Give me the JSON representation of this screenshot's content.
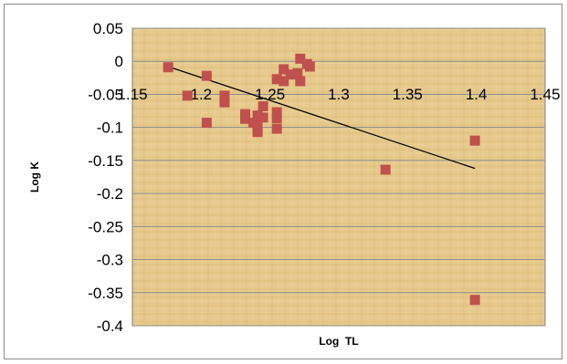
{
  "chart_data": {
    "type": "scatter",
    "xlabel": "Log  TL",
    "ylabel": "Log K",
    "xlim": [
      1.15,
      1.45
    ],
    "ylim": [
      -0.4,
      0.05
    ],
    "x_ticks": [
      "1.15",
      "1.2",
      "1.25",
      "1.3",
      "1.35",
      "1.4",
      "1.45"
    ],
    "y_ticks": [
      "0.05",
      "0",
      "-0.05",
      "-0.1",
      "-0.15",
      "-0.2",
      "-0.25",
      "-0.3",
      "-0.35",
      "-0.4"
    ],
    "grid": "horizontal",
    "legend": "none",
    "colors": {
      "marker": "#c0504d",
      "trendline": "#000000",
      "plot_background": "#e3c68a",
      "gridline": "#8a8a8a"
    },
    "points": [
      {
        "x": 1.176,
        "y": -0.009
      },
      {
        "x": 1.19,
        "y": -0.052
      },
      {
        "x": 1.204,
        "y": -0.022
      },
      {
        "x": 1.204,
        "y": -0.093
      },
      {
        "x": 1.217,
        "y": -0.052
      },
      {
        "x": 1.217,
        "y": -0.062
      },
      {
        "x": 1.232,
        "y": -0.08
      },
      {
        "x": 1.232,
        "y": -0.087
      },
      {
        "x": 1.238,
        "y": -0.093
      },
      {
        "x": 1.241,
        "y": -0.082
      },
      {
        "x": 1.241,
        "y": -0.1
      },
      {
        "x": 1.241,
        "y": -0.107
      },
      {
        "x": 1.245,
        "y": -0.068
      },
      {
        "x": 1.245,
        "y": -0.085
      },
      {
        "x": 1.255,
        "y": -0.027
      },
      {
        "x": 1.255,
        "y": -0.077
      },
      {
        "x": 1.255,
        "y": -0.086
      },
      {
        "x": 1.255,
        "y": -0.102
      },
      {
        "x": 1.26,
        "y": -0.012
      },
      {
        "x": 1.26,
        "y": -0.03
      },
      {
        "x": 1.265,
        "y": -0.02
      },
      {
        "x": 1.27,
        "y": -0.018
      },
      {
        "x": 1.272,
        "y": 0.004
      },
      {
        "x": 1.272,
        "y": -0.03
      },
      {
        "x": 1.277,
        "y": -0.004
      },
      {
        "x": 1.279,
        "y": -0.008
      },
      {
        "x": 1.334,
        "y": -0.164
      },
      {
        "x": 1.399,
        "y": -0.12
      },
      {
        "x": 1.399,
        "y": -0.361
      }
    ],
    "trendline": {
      "x": [
        1.176,
        1.399
      ],
      "y": [
        -0.008,
        -0.162
      ]
    }
  }
}
